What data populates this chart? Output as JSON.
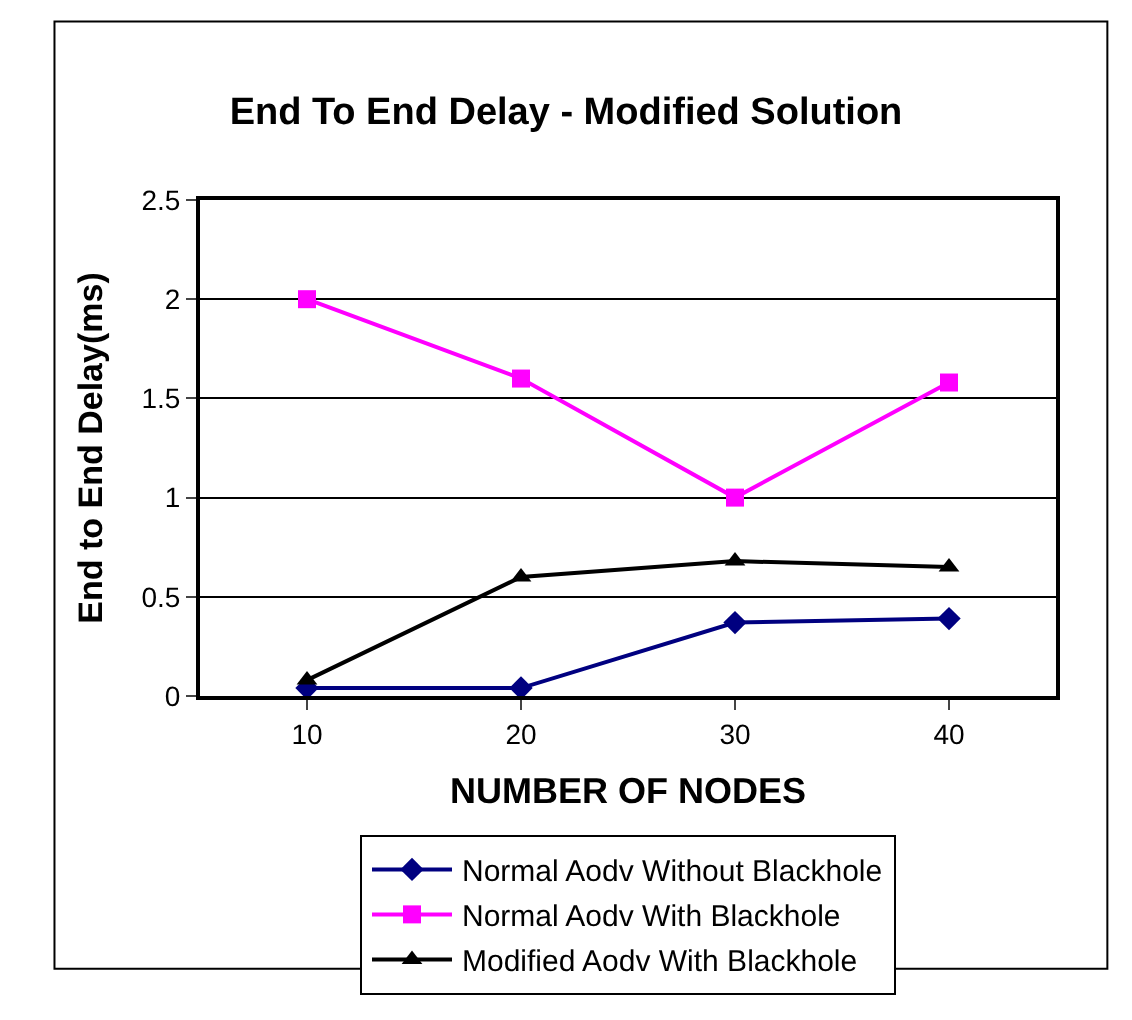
{
  "chart_data": {
    "type": "line",
    "title": "End To End Delay - Modified Solution",
    "xlabel": "NUMBER OF NODES",
    "ylabel": "End to End Delay(ms)",
    "categories": [
      "10",
      "20",
      "30",
      "40"
    ],
    "series": [
      {
        "name": "Normal Aodv Without Blackhole",
        "color": "#000080",
        "marker": "diamond",
        "values": [
          0.04,
          0.04,
          0.37,
          0.39
        ]
      },
      {
        "name": "Normal Aodv With Blackhole",
        "color": "#ff00ff",
        "marker": "square",
        "values": [
          2.0,
          1.6,
          1.0,
          1.58
        ]
      },
      {
        "name": "Modified Aodv With Blackhole",
        "color": "#000000",
        "marker": "triangle",
        "values": [
          0.08,
          0.6,
          0.68,
          0.65
        ]
      }
    ],
    "ylim": [
      0,
      2.5
    ],
    "yticks": [
      0,
      0.5,
      1,
      1.5,
      2,
      2.5
    ],
    "grid": "y",
    "legend": "bottom",
    "line_style": "solid"
  }
}
